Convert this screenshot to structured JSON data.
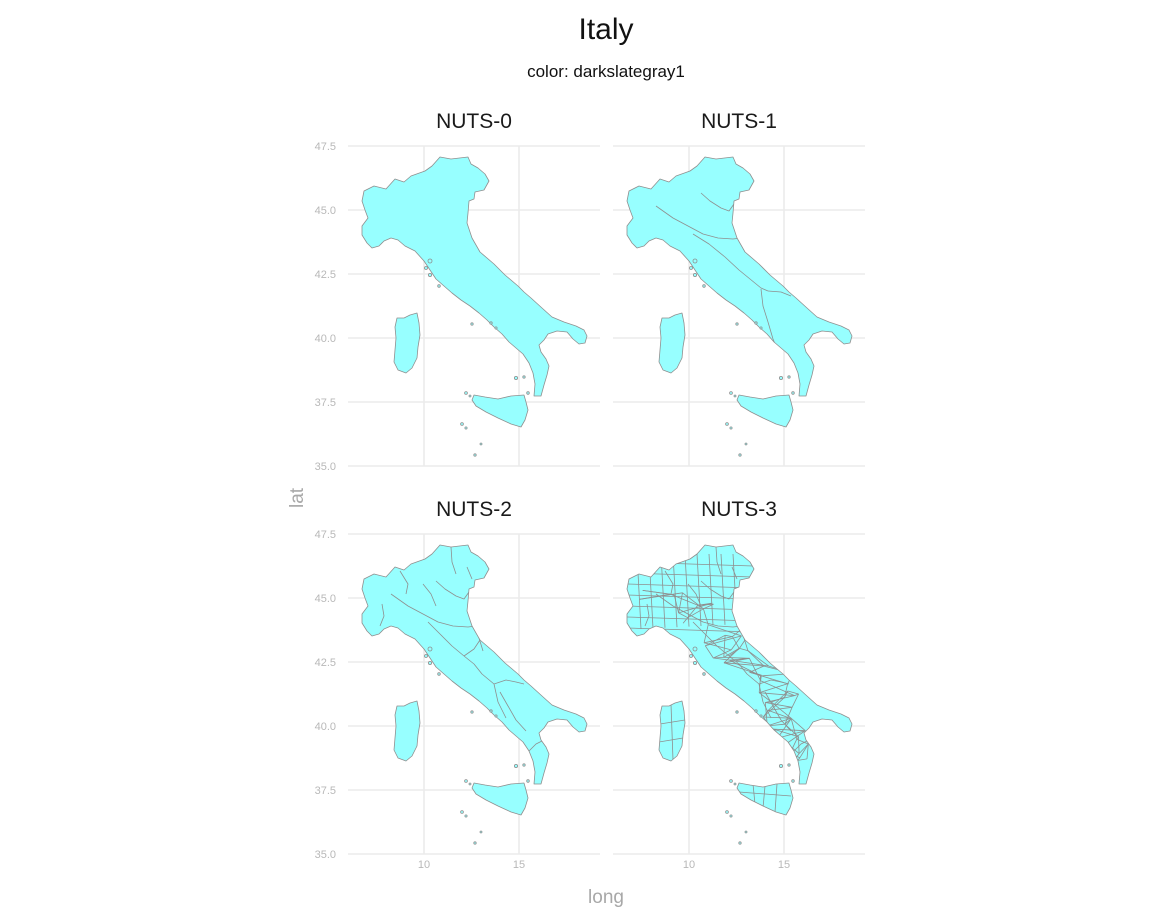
{
  "title": "Italy",
  "subtitle": "color: darkslategray1",
  "xlabel": "long",
  "ylabel": "lat",
  "fill_color": "#97FFFF",
  "border_color": "#8f8f8f",
  "panels": [
    {
      "label": "NUTS-0",
      "level": 0
    },
    {
      "label": "NUTS-1",
      "level": 1
    },
    {
      "label": "NUTS-2",
      "level": 2
    },
    {
      "label": "NUTS-3",
      "level": 3
    }
  ],
  "x_ticks": [
    "10",
    "15"
  ],
  "y_ticks": [
    "35.0",
    "37.5",
    "40.0",
    "42.5",
    "45.0",
    "47.5"
  ]
}
